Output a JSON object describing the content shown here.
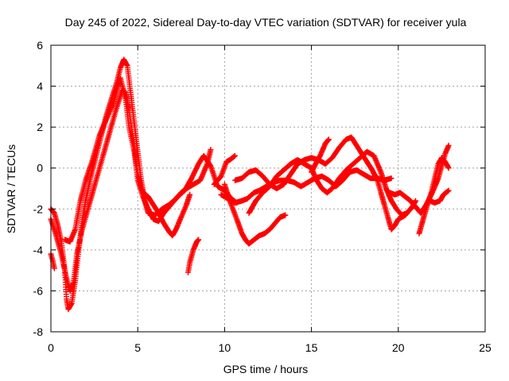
{
  "chart_data": {
    "type": "scatter",
    "title": "Day 245 of 2022, Sidereal Day-to-day VTEC variation (SDTVAR) for receiver yula",
    "xlabel": "GPS time / hours",
    "ylabel": "SDTVAR / TECUs",
    "xlim": [
      0,
      25
    ],
    "ylim": [
      -8,
      6
    ],
    "xticks": [
      "0",
      "5",
      "10",
      "15",
      "20",
      "25"
    ],
    "yticks": [
      "-8",
      "-6",
      "-4",
      "-2",
      "0",
      "2",
      "4",
      "6"
    ],
    "grid": true,
    "marker": "plus",
    "color": "#ff0000",
    "series": [
      {
        "name": "track-1",
        "points": [
          [
            0.0,
            -2.0
          ],
          [
            0.2,
            -2.2
          ],
          [
            0.4,
            -2.8
          ],
          [
            0.6,
            -3.6
          ],
          [
            0.8,
            -5.0
          ],
          [
            0.9,
            -6.4
          ],
          [
            1.0,
            -6.9
          ],
          [
            1.2,
            -6.6
          ],
          [
            1.4,
            -5.5
          ],
          [
            1.6,
            -4.0
          ],
          [
            1.8,
            -2.6
          ],
          [
            2.0,
            -1.6
          ],
          [
            2.3,
            -0.4
          ],
          [
            2.6,
            0.6
          ],
          [
            2.9,
            1.6
          ],
          [
            3.2,
            2.6
          ],
          [
            3.5,
            3.4
          ],
          [
            3.8,
            4.2
          ],
          [
            4.0,
            4.9
          ],
          [
            4.2,
            5.3
          ],
          [
            4.4,
            5.0
          ],
          [
            4.6,
            3.6
          ],
          [
            4.8,
            2.2
          ],
          [
            5.0,
            0.8
          ],
          [
            5.2,
            -0.6
          ],
          [
            5.4,
            -1.6
          ],
          [
            5.6,
            -2.2
          ],
          [
            6.0,
            -2.3
          ],
          [
            6.4,
            -2.0
          ],
          [
            6.8,
            -1.8
          ],
          [
            7.2,
            -1.5
          ],
          [
            7.5,
            -1.2
          ],
          [
            7.8,
            -1.0
          ],
          [
            8.2,
            -0.8
          ],
          [
            8.6,
            -0.6
          ],
          [
            9.0,
            0.2
          ],
          [
            9.2,
            0.9
          ]
        ]
      },
      {
        "name": "track-2",
        "points": [
          [
            0.0,
            -2.5
          ],
          [
            0.3,
            -3.3
          ],
          [
            0.6,
            -4.2
          ],
          [
            0.9,
            -5.4
          ],
          [
            1.1,
            -6.0
          ],
          [
            1.3,
            -5.6
          ],
          [
            1.5,
            -4.2
          ],
          [
            1.8,
            -3.0
          ],
          [
            2.2,
            -1.8
          ],
          [
            2.6,
            -0.6
          ],
          [
            3.0,
            0.6
          ],
          [
            3.4,
            1.8
          ],
          [
            3.8,
            3.0
          ],
          [
            4.1,
            3.8
          ],
          [
            4.3,
            3.7
          ],
          [
            4.5,
            2.8
          ],
          [
            4.7,
            1.6
          ],
          [
            5.0,
            -0.3
          ],
          [
            5.3,
            -1.2
          ],
          [
            5.6,
            -1.4
          ],
          [
            5.9,
            -1.8
          ],
          [
            6.2,
            -2.2
          ],
          [
            6.5,
            -2.7
          ],
          [
            6.8,
            -3.1
          ],
          [
            7.0,
            -3.3
          ],
          [
            7.2,
            -3.0
          ],
          [
            7.5,
            -2.4
          ],
          [
            7.8,
            -1.8
          ],
          [
            8.0,
            -1.3
          ]
        ]
      },
      {
        "name": "track-3",
        "points": [
          [
            0.8,
            -3.5
          ],
          [
            1.1,
            -3.6
          ],
          [
            1.4,
            -3.0
          ],
          [
            1.7,
            -1.6
          ],
          [
            2.0,
            -0.6
          ],
          [
            2.4,
            0.4
          ],
          [
            2.8,
            1.6
          ],
          [
            3.2,
            2.4
          ],
          [
            3.6,
            3.2
          ],
          [
            4.0,
            4.4
          ],
          [
            4.3,
            3.4
          ],
          [
            4.5,
            2.0
          ],
          [
            4.8,
            0.8
          ],
          [
            5.0,
            -0.6
          ],
          [
            5.3,
            -1.4
          ],
          [
            5.6,
            -2.0
          ],
          [
            5.9,
            -2.5
          ],
          [
            6.2,
            -2.6
          ],
          [
            6.5,
            -2.2
          ],
          [
            6.9,
            -1.8
          ],
          [
            7.3,
            -1.4
          ],
          [
            7.7,
            -1.1
          ],
          [
            8.1,
            -0.5
          ],
          [
            8.5,
            0.2
          ],
          [
            8.8,
            0.6
          ],
          [
            9.2,
            0.1
          ],
          [
            9.6,
            -0.9
          ],
          [
            10.0,
            -1.1
          ],
          [
            10.4,
            -1.5
          ],
          [
            10.7,
            -1.7
          ]
        ]
      },
      {
        "name": "track-4",
        "points": [
          [
            9.4,
            -0.8
          ],
          [
            9.8,
            -0.4
          ],
          [
            10.1,
            0.3
          ],
          [
            10.3,
            0.4
          ],
          [
            10.6,
            0.6
          ]
        ]
      },
      {
        "name": "track-5",
        "points": [
          [
            10.0,
            -0.8
          ],
          [
            10.3,
            -1.6
          ],
          [
            10.7,
            -2.5
          ],
          [
            11.0,
            -3.2
          ],
          [
            11.2,
            -3.5
          ],
          [
            11.4,
            -3.7
          ],
          [
            11.7,
            -3.5
          ],
          [
            12.0,
            -3.3
          ],
          [
            12.3,
            -3.2
          ],
          [
            12.6,
            -3.0
          ],
          [
            12.9,
            -2.7
          ],
          [
            13.2,
            -2.4
          ],
          [
            13.5,
            -2.3
          ]
        ]
      },
      {
        "name": "track-6",
        "points": [
          [
            9.8,
            -1.3
          ],
          [
            10.2,
            -1.5
          ],
          [
            10.6,
            -1.7
          ],
          [
            11.0,
            -1.6
          ],
          [
            11.3,
            -1.5
          ],
          [
            11.7,
            -1.2
          ],
          [
            12.0,
            -1.1
          ],
          [
            12.4,
            -0.9
          ],
          [
            12.8,
            -0.7
          ],
          [
            13.2,
            -0.6
          ],
          [
            13.6,
            -0.6
          ],
          [
            14.0,
            -0.7
          ],
          [
            14.4,
            -0.9
          ],
          [
            14.8,
            -0.7
          ],
          [
            15.2,
            -0.5
          ],
          [
            15.6,
            -0.4
          ],
          [
            16.0,
            -0.6
          ],
          [
            16.4,
            -0.9
          ],
          [
            16.8,
            -0.6
          ],
          [
            17.2,
            -0.2
          ],
          [
            17.6,
            -0.1
          ],
          [
            18.0,
            -0.3
          ],
          [
            18.4,
            -0.5
          ],
          [
            18.8,
            -0.5
          ],
          [
            19.2,
            -0.6
          ],
          [
            19.6,
            -0.5
          ]
        ]
      },
      {
        "name": "track-7",
        "points": [
          [
            10.6,
            -0.6
          ],
          [
            11.0,
            -0.5
          ],
          [
            11.4,
            -0.2
          ],
          [
            11.8,
            -0.1
          ],
          [
            12.2,
            -0.4
          ],
          [
            12.6,
            -0.8
          ],
          [
            13.0,
            -1.0
          ],
          [
            13.4,
            -0.8
          ],
          [
            13.8,
            -0.3
          ],
          [
            14.2,
            0.2
          ],
          [
            14.6,
            0.4
          ],
          [
            15.0,
            0.5
          ],
          [
            15.4,
            0.4
          ],
          [
            15.8,
            0.2
          ],
          [
            16.2,
            0.5
          ],
          [
            16.6,
            1.0
          ],
          [
            17.0,
            1.4
          ],
          [
            17.3,
            1.5
          ],
          [
            17.6,
            1.1
          ],
          [
            17.9,
            0.7
          ],
          [
            18.2,
            0.3
          ],
          [
            18.5,
            -0.1
          ],
          [
            18.8,
            -0.6
          ],
          [
            19.0,
            -1.2
          ],
          [
            19.2,
            -1.8
          ],
          [
            19.4,
            -2.4
          ],
          [
            19.6,
            -3.0
          ],
          [
            19.8,
            -2.8
          ],
          [
            20.0,
            -2.5
          ],
          [
            20.2,
            -2.4
          ],
          [
            20.4,
            -2.3
          ],
          [
            20.6,
            -2.1
          ],
          [
            20.8,
            -1.9
          ],
          [
            21.0,
            -1.6
          ]
        ]
      },
      {
        "name": "track-8",
        "points": [
          [
            11.4,
            -2.2
          ],
          [
            11.8,
            -1.6
          ],
          [
            12.2,
            -1.2
          ],
          [
            12.6,
            -0.9
          ],
          [
            13.0,
            -0.4
          ],
          [
            13.4,
            -0.1
          ],
          [
            13.8,
            0.2
          ],
          [
            14.2,
            0.4
          ],
          [
            14.6,
            0.2
          ],
          [
            15.0,
            0.0
          ],
          [
            15.3,
            -0.6
          ],
          [
            15.6,
            -1.0
          ],
          [
            15.9,
            -1.2
          ],
          [
            16.2,
            -1.0
          ],
          [
            16.6,
            -0.5
          ],
          [
            17.0,
            -0.1
          ],
          [
            17.4,
            0.2
          ],
          [
            17.8,
            0.5
          ],
          [
            18.2,
            0.8
          ],
          [
            18.6,
            0.6
          ],
          [
            19.0,
            -0.2
          ],
          [
            19.3,
            -1.0
          ],
          [
            19.6,
            -1.6
          ],
          [
            19.9,
            -2.0
          ],
          [
            20.2,
            -2.3
          ],
          [
            20.5,
            -2.2
          ]
        ]
      },
      {
        "name": "track-9",
        "points": [
          [
            15.0,
            -0.2
          ],
          [
            15.3,
            0.3
          ],
          [
            15.5,
            0.6
          ],
          [
            15.8,
            1.2
          ],
          [
            16.0,
            1.4
          ]
        ]
      },
      {
        "name": "track-10",
        "points": [
          [
            19.5,
            -1.2
          ],
          [
            19.8,
            -1.3
          ],
          [
            20.1,
            -1.2
          ],
          [
            20.4,
            -1.4
          ],
          [
            20.7,
            -1.6
          ],
          [
            21.0,
            -1.9
          ],
          [
            21.3,
            -2.2
          ],
          [
            21.6,
            -1.8
          ],
          [
            21.9,
            -1.3
          ],
          [
            22.1,
            -0.9
          ],
          [
            22.3,
            -0.5
          ],
          [
            22.5,
            0.1
          ],
          [
            22.7,
            0.7
          ],
          [
            22.9,
            1.1
          ]
        ]
      },
      {
        "name": "track-11",
        "points": [
          [
            21.2,
            -3.2
          ],
          [
            21.4,
            -2.6
          ],
          [
            21.6,
            -2.0
          ],
          [
            21.9,
            -1.2
          ],
          [
            22.1,
            -0.5
          ],
          [
            22.3,
            0.2
          ],
          [
            22.5,
            0.5
          ],
          [
            22.7,
            0.3
          ],
          [
            22.9,
            0.0
          ]
        ]
      },
      {
        "name": "track-12",
        "points": [
          [
            21.8,
            -1.6
          ],
          [
            22.1,
            -1.7
          ],
          [
            22.4,
            -1.6
          ],
          [
            22.6,
            -1.3
          ],
          [
            22.9,
            -1.1
          ]
        ]
      },
      {
        "name": "track-13",
        "points": [
          [
            0.0,
            -4.2
          ],
          [
            0.1,
            -4.5
          ],
          [
            0.2,
            -4.9
          ]
        ]
      },
      {
        "name": "track-14",
        "points": [
          [
            7.9,
            -5.1
          ],
          [
            8.0,
            -4.6
          ],
          [
            8.2,
            -4.0
          ],
          [
            8.4,
            -3.6
          ],
          [
            8.5,
            -3.5
          ]
        ]
      }
    ]
  }
}
